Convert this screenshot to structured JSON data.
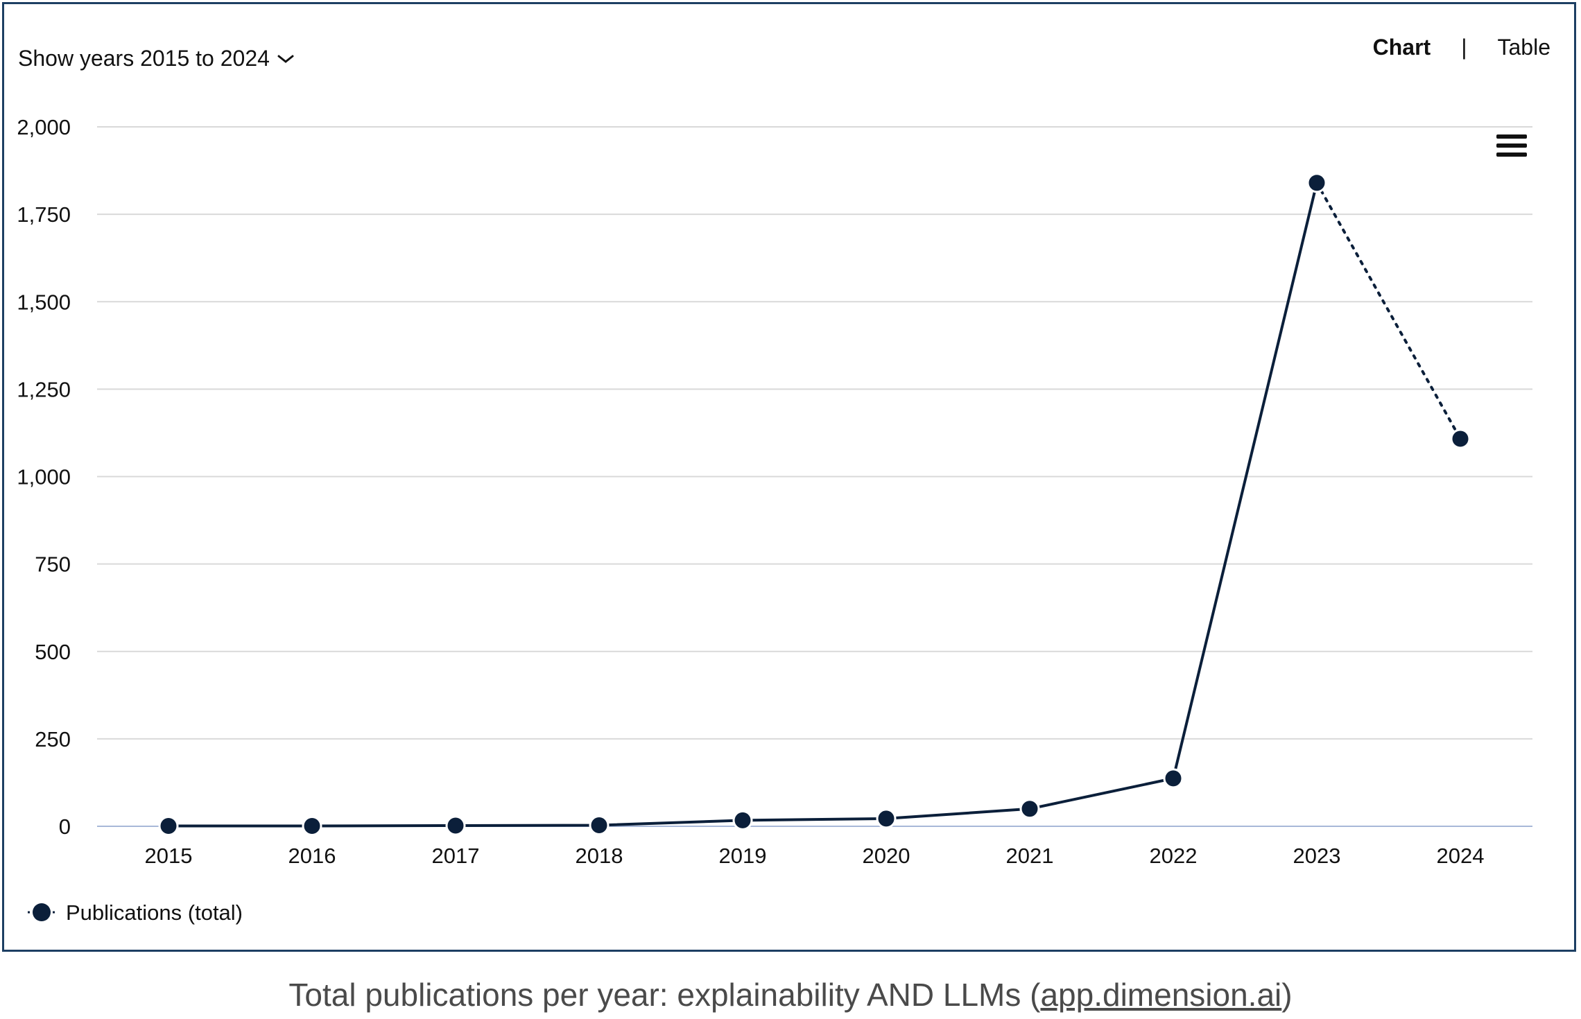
{
  "controls": {
    "year_range_label": "Show years 2015 to 2024",
    "chevron_icon": "chevron-down-icon",
    "view_chart": "Chart",
    "view_separator": "|",
    "view_table": "Table",
    "menu_icon": "hamburger-menu-icon"
  },
  "caption": {
    "prefix": "Total publications per year: explainability AND LLMs (",
    "link": "app.dimension.ai",
    "suffix": ")"
  },
  "chart_data": {
    "type": "line",
    "categories": [
      "2015",
      "2016",
      "2017",
      "2018",
      "2019",
      "2020",
      "2021",
      "2022",
      "2023",
      "2024"
    ],
    "series": [
      {
        "name": "Publications (total)",
        "values": [
          1,
          1,
          2,
          3,
          17,
          22,
          50,
          137,
          1840,
          1108
        ],
        "color": "#0b1f3a",
        "dotted_segment_from_index": 8
      }
    ],
    "yticks": [
      "0",
      "250",
      "500",
      "750",
      "1,000",
      "1,250",
      "1,500",
      "1,750",
      "2,000"
    ],
    "ylim": [
      0,
      2000
    ],
    "grid": true,
    "legend_position": "bottom-left",
    "colors": {
      "grid": "#d9d9d9",
      "baseline": "#a8b8d8",
      "frame": "#1d3f63"
    }
  }
}
